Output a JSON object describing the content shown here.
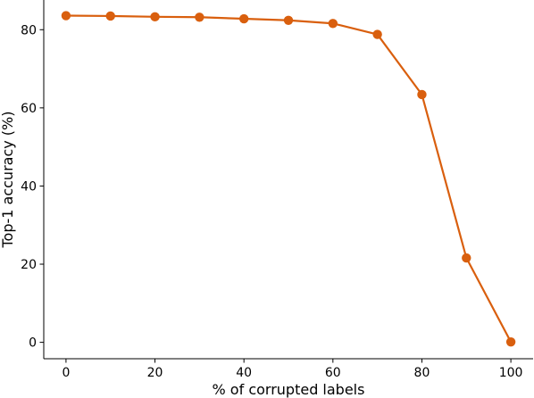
{
  "chart_data": {
    "type": "line",
    "xlabel": "% of corrupted labels",
    "ylabel": "Top-1 accuracy (%)",
    "xlim": [
      -5,
      105
    ],
    "ylim": [
      -4.2,
      87.6
    ],
    "x_ticks": [
      0,
      20,
      40,
      60,
      80,
      100
    ],
    "y_ticks": [
      0,
      20,
      40,
      60,
      80
    ],
    "grid": false,
    "series": [
      {
        "color": "#d95f0e",
        "x": [
          0,
          10,
          20,
          30,
          40,
          50,
          60,
          70,
          80,
          90,
          100
        ],
        "y": [
          83.6,
          83.5,
          83.3,
          83.2,
          82.8,
          82.4,
          81.6,
          78.8,
          63.4,
          21.6,
          0.1
        ]
      }
    ]
  }
}
